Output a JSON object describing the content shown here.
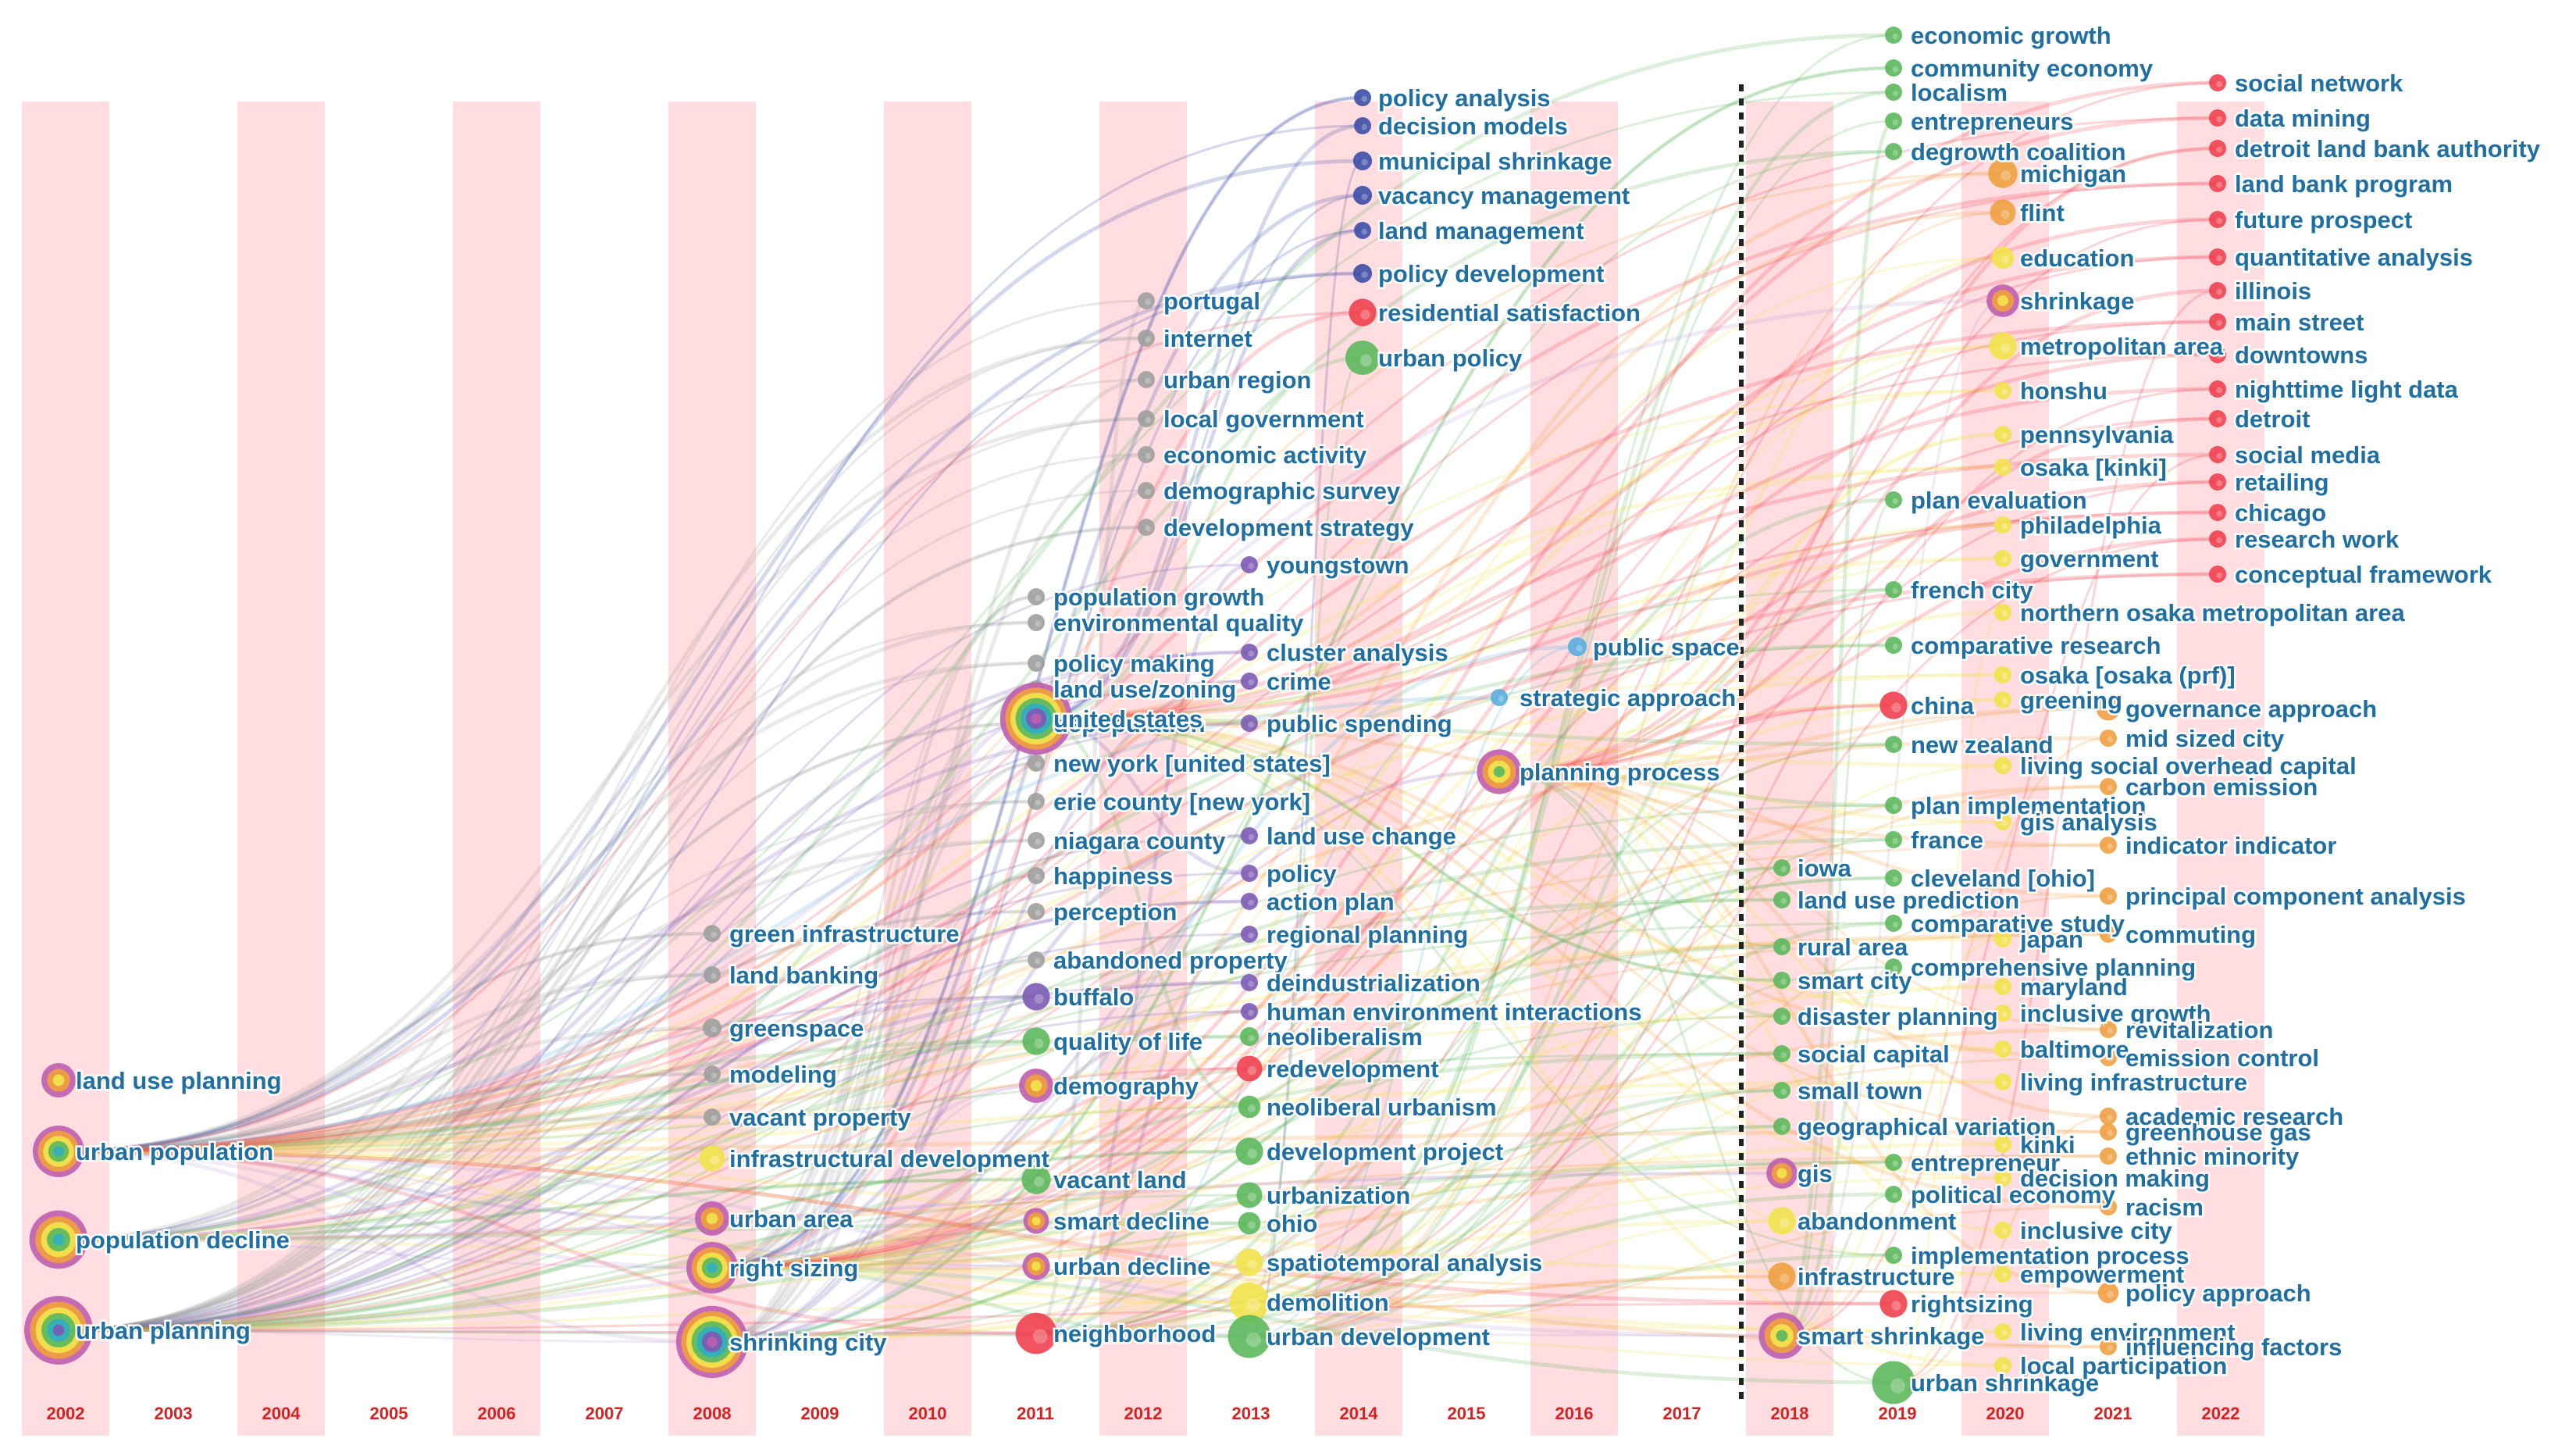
{
  "chart_data": {
    "type": "timezone-network",
    "title": "",
    "xlabel": "",
    "ylabel": "",
    "years": [
      2002,
      2003,
      2004,
      2005,
      2006,
      2007,
      2008,
      2009,
      2010,
      2011,
      2012,
      2013,
      2014,
      2015,
      2016,
      2017,
      2018,
      2019,
      2020,
      2021,
      2022
    ],
    "divider_after_year": 2017,
    "colors": {
      "band": "#ffdde1",
      "text": "#1f6fa3",
      "year": "#d92020",
      "gray": "#9e9e9e",
      "purple": "#7b5bb5",
      "navy": "#3d4fa8",
      "green": "#5cb85c",
      "yellow": "#f2e34c",
      "orange": "#f0a040",
      "red": "#f0404f",
      "sky": "#5aaee0",
      "multi": [
        "#c060b0",
        "#f0a040",
        "#f2e34c",
        "#5cb85c",
        "#30b0c0",
        "#7b5bb5"
      ]
    },
    "nodes": [
      {
        "year": 2002,
        "label": "land use planning",
        "size": 2,
        "color": "multi"
      },
      {
        "year": 2002,
        "label": "urban population",
        "size": 3,
        "color": "multi"
      },
      {
        "year": 2002,
        "label": "population decline",
        "size": 3.4,
        "color": "multi"
      },
      {
        "year": 2002,
        "label": "urban planning",
        "size": 4,
        "color": "multi"
      },
      {
        "year": 2008,
        "label": "green infrastructure",
        "size": 1,
        "color": "gray"
      },
      {
        "year": 2008,
        "label": "land banking",
        "size": 1,
        "color": "gray"
      },
      {
        "year": 2008,
        "label": "greenspace",
        "size": 1.1,
        "color": "gray"
      },
      {
        "year": 2008,
        "label": "modeling",
        "size": 1,
        "color": "gray"
      },
      {
        "year": 2008,
        "label": "vacant property",
        "size": 1,
        "color": "gray"
      },
      {
        "year": 2008,
        "label": "infrastructural development",
        "size": 1.5,
        "color": "yellow"
      },
      {
        "year": 2008,
        "label": "urban area",
        "size": 2,
        "color": "multi"
      },
      {
        "year": 2008,
        "label": "right sizing",
        "size": 3,
        "color": "multi"
      },
      {
        "year": 2008,
        "label": "shrinking city",
        "size": 4.2,
        "color": "multi"
      },
      {
        "year": 2011,
        "label": "population growth",
        "size": 1,
        "color": "gray"
      },
      {
        "year": 2011,
        "label": "environmental quality",
        "size": 1,
        "color": "gray"
      },
      {
        "year": 2011,
        "label": "policy making",
        "size": 1,
        "color": "gray"
      },
      {
        "year": 2011,
        "label": "land use/zoning",
        "size": 1,
        "color": "gray"
      },
      {
        "year": 2011,
        "label": "depopulation",
        "size": 1,
        "color": "gray"
      },
      {
        "year": 2011,
        "label": "new york [united states]",
        "size": 1,
        "color": "gray"
      },
      {
        "year": 2011,
        "label": "erie county [new york]",
        "size": 1,
        "color": "gray"
      },
      {
        "year": 2011,
        "label": "niagara county",
        "size": 1,
        "color": "gray"
      },
      {
        "year": 2011,
        "label": "happiness",
        "size": 1,
        "color": "gray"
      },
      {
        "year": 2011,
        "label": "perception",
        "size": 1,
        "color": "gray"
      },
      {
        "year": 2011,
        "label": "abandoned property",
        "size": 1,
        "color": "gray"
      },
      {
        "year": 2011,
        "label": "buffalo",
        "size": 1.6,
        "color": "purple"
      },
      {
        "year": 2011,
        "label": "quality of life",
        "size": 1.6,
        "color": "green"
      },
      {
        "year": 2011,
        "label": "demography",
        "size": 2,
        "color": "multi"
      },
      {
        "year": 2011,
        "label": "vacant land",
        "size": 1.7,
        "color": "green"
      },
      {
        "year": 2011,
        "label": "smart decline",
        "size": 1.5,
        "color": "multi"
      },
      {
        "year": 2011,
        "label": "urban decline",
        "size": 1.6,
        "color": "multi"
      },
      {
        "year": 2011,
        "label": "neighborhood",
        "size": 2.4,
        "color": "red"
      },
      {
        "year": 2011,
        "label": "united states",
        "size": 4.2,
        "color": "multi"
      },
      {
        "year": 2012,
        "label": "portugal",
        "size": 1,
        "color": "gray"
      },
      {
        "year": 2012,
        "label": "internet",
        "size": 1,
        "color": "gray"
      },
      {
        "year": 2012,
        "label": "urban region",
        "size": 1,
        "color": "gray"
      },
      {
        "year": 2012,
        "label": "local government",
        "size": 1,
        "color": "gray"
      },
      {
        "year": 2012,
        "label": "economic activity",
        "size": 1,
        "color": "gray"
      },
      {
        "year": 2012,
        "label": "demographic survey",
        "size": 1,
        "color": "gray"
      },
      {
        "year": 2012,
        "label": "development strategy",
        "size": 1,
        "color": "gray"
      },
      {
        "year": 2013,
        "label": "youngstown",
        "size": 1,
        "color": "purple"
      },
      {
        "year": 2013,
        "label": "cluster analysis",
        "size": 1,
        "color": "purple"
      },
      {
        "year": 2013,
        "label": "crime",
        "size": 1,
        "color": "purple"
      },
      {
        "year": 2013,
        "label": "public spending",
        "size": 1,
        "color": "purple"
      },
      {
        "year": 2013,
        "label": "land use change",
        "size": 1,
        "color": "purple"
      },
      {
        "year": 2013,
        "label": "policy",
        "size": 1,
        "color": "purple"
      },
      {
        "year": 2013,
        "label": "action plan",
        "size": 1,
        "color": "purple"
      },
      {
        "year": 2013,
        "label": "regional planning",
        "size": 1,
        "color": "purple"
      },
      {
        "year": 2013,
        "label": "deindustrialization",
        "size": 1,
        "color": "purple"
      },
      {
        "year": 2013,
        "label": "human environment interactions",
        "size": 1,
        "color": "purple"
      },
      {
        "year": 2013,
        "label": "neoliberalism",
        "size": 1.1,
        "color": "green"
      },
      {
        "year": 2013,
        "label": "redevelopment",
        "size": 1.5,
        "color": "red"
      },
      {
        "year": 2013,
        "label": "neoliberal urbanism",
        "size": 1.3,
        "color": "green"
      },
      {
        "year": 2013,
        "label": "development project",
        "size": 1.6,
        "color": "green"
      },
      {
        "year": 2013,
        "label": "urbanization",
        "size": 1.5,
        "color": "green"
      },
      {
        "year": 2013,
        "label": "ohio",
        "size": 1.3,
        "color": "green"
      },
      {
        "year": 2013,
        "label": "spatiotemporal analysis",
        "size": 1.6,
        "color": "yellow"
      },
      {
        "year": 2013,
        "label": "demolition",
        "size": 2.3,
        "color": "yellow"
      },
      {
        "year": 2013,
        "label": "urban development",
        "size": 2.5,
        "color": "green"
      },
      {
        "year": 2014,
        "label": "policy analysis",
        "size": 1,
        "color": "navy"
      },
      {
        "year": 2014,
        "label": "decision models",
        "size": 1,
        "color": "navy"
      },
      {
        "year": 2014,
        "label": "municipal shrinkage",
        "size": 1.1,
        "color": "navy"
      },
      {
        "year": 2014,
        "label": "vacancy management",
        "size": 1.1,
        "color": "navy"
      },
      {
        "year": 2014,
        "label": "land management",
        "size": 1,
        "color": "navy"
      },
      {
        "year": 2014,
        "label": "policy development",
        "size": 1.1,
        "color": "navy"
      },
      {
        "year": 2014,
        "label": "residential satisfaction",
        "size": 1.6,
        "color": "red"
      },
      {
        "year": 2014,
        "label": "urban policy",
        "size": 2,
        "color": "green"
      },
      {
        "year": 2015,
        "label": "strategic approach",
        "size": 1,
        "color": "sky"
      },
      {
        "year": 2015,
        "label": "planning process",
        "size": 2.6,
        "color": "multi"
      },
      {
        "year": 2016,
        "label": "public space",
        "size": 1.1,
        "color": "sky"
      },
      {
        "year": 2018,
        "label": "iowa",
        "size": 1,
        "color": "green"
      },
      {
        "year": 2018,
        "label": "land use prediction",
        "size": 1,
        "color": "green"
      },
      {
        "year": 2018,
        "label": "rural area",
        "size": 1,
        "color": "green"
      },
      {
        "year": 2018,
        "label": "smart city",
        "size": 1,
        "color": "green"
      },
      {
        "year": 2018,
        "label": "disaster planning",
        "size": 1,
        "color": "green"
      },
      {
        "year": 2018,
        "label": "social capital",
        "size": 1,
        "color": "green"
      },
      {
        "year": 2018,
        "label": "small town",
        "size": 1,
        "color": "green"
      },
      {
        "year": 2018,
        "label": "geographical variation",
        "size": 1,
        "color": "green"
      },
      {
        "year": 2018,
        "label": "gis",
        "size": 1.8,
        "color": "multi"
      },
      {
        "year": 2018,
        "label": "abandonment",
        "size": 1.6,
        "color": "yellow"
      },
      {
        "year": 2018,
        "label": "infrastructure",
        "size": 1.6,
        "color": "orange"
      },
      {
        "year": 2018,
        "label": "smart shrinkage",
        "size": 2.7,
        "color": "multi"
      },
      {
        "year": 2019,
        "label": "economic growth",
        "size": 1,
        "color": "green"
      },
      {
        "year": 2019,
        "label": "community economy",
        "size": 1,
        "color": "green"
      },
      {
        "year": 2019,
        "label": "localism",
        "size": 1,
        "color": "green"
      },
      {
        "year": 2019,
        "label": "entrepreneurs",
        "size": 1,
        "color": "green"
      },
      {
        "year": 2019,
        "label": "degrowth coalition",
        "size": 1,
        "color": "green"
      },
      {
        "year": 2019,
        "label": "plan evaluation",
        "size": 1,
        "color": "green"
      },
      {
        "year": 2019,
        "label": "french city",
        "size": 1,
        "color": "green"
      },
      {
        "year": 2019,
        "label": "comparative research",
        "size": 1,
        "color": "green"
      },
      {
        "year": 2019,
        "label": "china",
        "size": 1.6,
        "color": "red"
      },
      {
        "year": 2019,
        "label": "new zealand",
        "size": 1,
        "color": "green"
      },
      {
        "year": 2019,
        "label": "plan implementation",
        "size": 1,
        "color": "green"
      },
      {
        "year": 2019,
        "label": "france",
        "size": 1,
        "color": "green"
      },
      {
        "year": 2019,
        "label": "cleveland [ohio]",
        "size": 1,
        "color": "green"
      },
      {
        "year": 2019,
        "label": "comparative study",
        "size": 1,
        "color": "green"
      },
      {
        "year": 2019,
        "label": "comprehensive planning",
        "size": 1,
        "color": "green"
      },
      {
        "year": 2019,
        "label": "entrepreneur",
        "size": 1,
        "color": "green"
      },
      {
        "year": 2019,
        "label": "political economy",
        "size": 1,
        "color": "green"
      },
      {
        "year": 2019,
        "label": "implementation process",
        "size": 1,
        "color": "green"
      },
      {
        "year": 2019,
        "label": "rightsizing",
        "size": 1.6,
        "color": "red"
      },
      {
        "year": 2019,
        "label": "urban shrinkage",
        "size": 2.5,
        "color": "green"
      },
      {
        "year": 2020,
        "label": "michigan",
        "size": 1.7,
        "color": "orange"
      },
      {
        "year": 2020,
        "label": "flint",
        "size": 1.5,
        "color": "orange"
      },
      {
        "year": 2020,
        "label": "education",
        "size": 1.3,
        "color": "yellow"
      },
      {
        "year": 2020,
        "label": "shrinkage",
        "size": 1.9,
        "color": "multi"
      },
      {
        "year": 2020,
        "label": "metropolitan area",
        "size": 1.6,
        "color": "yellow"
      },
      {
        "year": 2020,
        "label": "honshu",
        "size": 1,
        "color": "yellow"
      },
      {
        "year": 2020,
        "label": "pennsylvania",
        "size": 1,
        "color": "yellow"
      },
      {
        "year": 2020,
        "label": "osaka [kinki]",
        "size": 1,
        "color": "yellow"
      },
      {
        "year": 2020,
        "label": "philadelphia",
        "size": 1,
        "color": "yellow"
      },
      {
        "year": 2020,
        "label": "government",
        "size": 1,
        "color": "yellow"
      },
      {
        "year": 2020,
        "label": "northern osaka metropolitan area",
        "size": 1,
        "color": "yellow"
      },
      {
        "year": 2020,
        "label": "osaka [osaka (prf)]",
        "size": 1,
        "color": "yellow"
      },
      {
        "year": 2020,
        "label": "greening",
        "size": 1,
        "color": "yellow"
      },
      {
        "year": 2020,
        "label": "living social overhead capital",
        "size": 1,
        "color": "yellow"
      },
      {
        "year": 2020,
        "label": "gis analysis",
        "size": 1,
        "color": "yellow"
      },
      {
        "year": 2020,
        "label": "japan",
        "size": 1,
        "color": "yellow"
      },
      {
        "year": 2020,
        "label": "maryland",
        "size": 1,
        "color": "yellow"
      },
      {
        "year": 2020,
        "label": "inclusive growth",
        "size": 1,
        "color": "yellow"
      },
      {
        "year": 2020,
        "label": "baltimore",
        "size": 1,
        "color": "yellow"
      },
      {
        "year": 2020,
        "label": "living infrastructure",
        "size": 1,
        "color": "yellow"
      },
      {
        "year": 2020,
        "label": "kinki",
        "size": 1,
        "color": "yellow"
      },
      {
        "year": 2020,
        "label": "decision making",
        "size": 1,
        "color": "yellow"
      },
      {
        "year": 2020,
        "label": "inclusive city",
        "size": 1,
        "color": "yellow"
      },
      {
        "year": 2020,
        "label": "empowerment",
        "size": 1,
        "color": "yellow"
      },
      {
        "year": 2020,
        "label": "living environment",
        "size": 1,
        "color": "yellow"
      },
      {
        "year": 2020,
        "label": "local participation",
        "size": 1,
        "color": "yellow"
      },
      {
        "year": 2021,
        "label": "governance approach",
        "size": 1.4,
        "color": "orange"
      },
      {
        "year": 2021,
        "label": "mid sized city",
        "size": 1,
        "color": "orange"
      },
      {
        "year": 2021,
        "label": "carbon emission",
        "size": 1,
        "color": "orange"
      },
      {
        "year": 2021,
        "label": "indicator indicator",
        "size": 1,
        "color": "orange"
      },
      {
        "year": 2021,
        "label": "principal component analysis",
        "size": 1,
        "color": "orange"
      },
      {
        "year": 2021,
        "label": "commuting",
        "size": 1,
        "color": "orange"
      },
      {
        "year": 2021,
        "label": "revitalization",
        "size": 1,
        "color": "orange"
      },
      {
        "year": 2021,
        "label": "emission control",
        "size": 1,
        "color": "orange"
      },
      {
        "year": 2021,
        "label": "academic research",
        "size": 1,
        "color": "orange"
      },
      {
        "year": 2021,
        "label": "greenhouse gas",
        "size": 1,
        "color": "orange"
      },
      {
        "year": 2021,
        "label": "ethnic minority",
        "size": 1,
        "color": "orange"
      },
      {
        "year": 2021,
        "label": "racism",
        "size": 1,
        "color": "orange"
      },
      {
        "year": 2021,
        "label": "policy approach",
        "size": 1.2,
        "color": "orange"
      },
      {
        "year": 2021,
        "label": "influencing factors",
        "size": 1,
        "color": "orange"
      },
      {
        "year": 2022,
        "label": "social network",
        "size": 1,
        "color": "red"
      },
      {
        "year": 2022,
        "label": "data mining",
        "size": 1,
        "color": "red"
      },
      {
        "year": 2022,
        "label": "detroit land bank authority",
        "size": 1,
        "color": "red"
      },
      {
        "year": 2022,
        "label": "land bank program",
        "size": 1,
        "color": "red"
      },
      {
        "year": 2022,
        "label": "future prospect",
        "size": 1,
        "color": "red"
      },
      {
        "year": 2022,
        "label": "quantitative analysis",
        "size": 1,
        "color": "red"
      },
      {
        "year": 2022,
        "label": "illinois",
        "size": 1,
        "color": "red"
      },
      {
        "year": 2022,
        "label": "main street",
        "size": 1,
        "color": "red"
      },
      {
        "year": 2022,
        "label": "downtowns",
        "size": 1,
        "color": "red"
      },
      {
        "year": 2022,
        "label": "nighttime light data",
        "size": 1,
        "color": "red"
      },
      {
        "year": 2022,
        "label": "detroit",
        "size": 1,
        "color": "red"
      },
      {
        "year": 2022,
        "label": "social media",
        "size": 1,
        "color": "red"
      },
      {
        "year": 2022,
        "label": "retailing",
        "size": 1,
        "color": "red"
      },
      {
        "year": 2022,
        "label": "chicago",
        "size": 1,
        "color": "red"
      },
      {
        "year": 2022,
        "label": "research work",
        "size": 1,
        "color": "red"
      },
      {
        "year": 2022,
        "label": "conceptual framework",
        "size": 1,
        "color": "red"
      }
    ]
  }
}
